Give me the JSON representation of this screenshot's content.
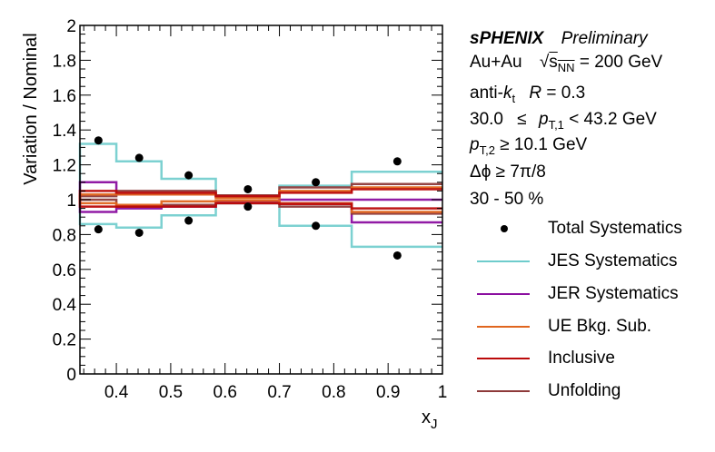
{
  "chart_data": {
    "type": "line",
    "title": "",
    "xlabel": "x_J",
    "ylabel": "Variation / Nominal",
    "xlim": [
      0.333,
      1.0
    ],
    "ylim": [
      0,
      2
    ],
    "grid": false,
    "x_ticks": [
      "0.4",
      "0.5",
      "0.6",
      "0.7",
      "0.8",
      "0.9",
      "1"
    ],
    "y_ticks": [
      "0",
      "0.2",
      "0.4",
      "0.6",
      "0.8",
      "1",
      "1.2",
      "1.4",
      "1.6",
      "1.8",
      "2"
    ],
    "bin_edges": [
      0.333,
      0.4,
      0.483,
      0.583,
      0.7,
      0.833,
      1.0
    ],
    "bin_centers": [
      0.367,
      0.442,
      0.533,
      0.642,
      0.767,
      0.917
    ],
    "series": [
      {
        "name": "Total Systematics",
        "style": "points",
        "color": "#000000",
        "up": [
          1.34,
          1.24,
          1.14,
          1.06,
          1.1,
          1.22
        ],
        "down": [
          0.83,
          0.81,
          0.88,
          0.96,
          0.85,
          0.68
        ]
      },
      {
        "name": "JES Systematics",
        "style": "step",
        "color": "#6ecccc",
        "up": [
          1.32,
          1.22,
          1.12,
          1.02,
          1.08,
          1.16
        ],
        "down": [
          0.86,
          0.84,
          0.91,
          0.98,
          0.85,
          0.73
        ]
      },
      {
        "name": "JER Systematics",
        "style": "step",
        "color": "#8b0fa0",
        "up": [
          1.1,
          1.03,
          1.03,
          1.02,
          1.0,
          1.0
        ],
        "down": [
          0.93,
          0.95,
          0.96,
          0.99,
          0.98,
          0.87
        ]
      },
      {
        "name": "UE Bkg. Sub.",
        "style": "step",
        "color": "#e0651e",
        "up": [
          1.03,
          1.03,
          1.03,
          1.01,
          1.05,
          1.07
        ],
        "down": [
          0.98,
          0.97,
          0.99,
          0.995,
          0.98,
          0.93
        ]
      },
      {
        "name": "Inclusive",
        "style": "step",
        "color": "#bb0a0a",
        "up": [
          1.05,
          1.04,
          1.04,
          1.02,
          1.04,
          1.06
        ],
        "down": [
          0.96,
          0.96,
          0.96,
          0.98,
          0.975,
          0.95
        ]
      },
      {
        "name": "Unfolding",
        "style": "step",
        "color": "#8e3a3a",
        "up": [
          1.02,
          1.05,
          1.05,
          1.025,
          1.07,
          1.09
        ],
        "down": [
          1.0,
          0.96,
          0.97,
          0.98,
          0.96,
          0.92
        ]
      }
    ],
    "legend": {
      "position": "right",
      "entries": [
        {
          "label": "Total Systematics",
          "marker": "dot",
          "color": "#000000"
        },
        {
          "label": "JES Systematics",
          "marker": "line",
          "color": "#6ecccc"
        },
        {
          "label": "JER Systematics",
          "marker": "line",
          "color": "#8b0fa0"
        },
        {
          "label": "UE Bkg. Sub.",
          "marker": "line",
          "color": "#e0651e"
        },
        {
          "label": "Inclusive",
          "marker": "line",
          "color": "#bb0a0a"
        },
        {
          "label": "Unfolding",
          "marker": "line",
          "color": "#8e3a3a"
        }
      ]
    }
  },
  "annotations": {
    "experiment": "sPHENIX",
    "status": "Preliminary",
    "system": "Au+Au",
    "sqrt_prefix": "√",
    "s_symbol": "s",
    "s_subscript": "NN",
    "energy": "= 200 GeV",
    "algo_prefix": "anti-",
    "algo_k": "k",
    "algo_k_sub": "t",
    "radius_label": "R",
    "radius_value": "= 0.3",
    "pt1_low": "30.0",
    "pt1_le": "≤",
    "pt1_p": "p",
    "pt1_sub": "T,1",
    "pt1_high": "< 43.2 GeV",
    "pt2_p": "p",
    "pt2_sub": "T,2",
    "pt2_cut": "≥ 10.1 GeV",
    "dphi_cut": "Δϕ ≥ 7π/8",
    "centrality": "30 - 50 %"
  }
}
